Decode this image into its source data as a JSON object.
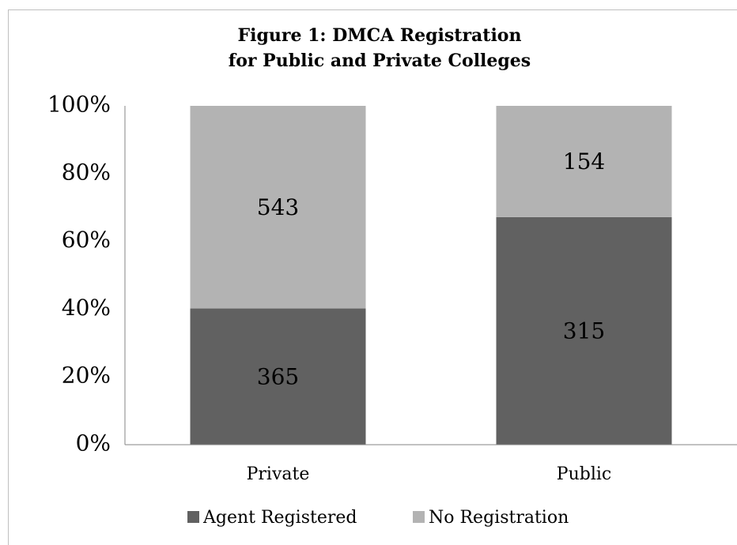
{
  "chart_data": {
    "type": "bar",
    "stacked": "percent",
    "title": [
      "Figure 1:  DMCA Registration",
      "for Public and Private Colleges"
    ],
    "categories": [
      "Private",
      "Public"
    ],
    "series": [
      {
        "name": "Agent Registered",
        "color": "#616161",
        "values": [
          365,
          315
        ]
      },
      {
        "name": "No Registration",
        "color": "#b3b3b3",
        "values": [
          543,
          154
        ]
      }
    ],
    "ylim": [
      0,
      100
    ],
    "yticks": [
      {
        "value": 0,
        "label": "0%"
      },
      {
        "value": 20,
        "label": "20%"
      },
      {
        "value": 40,
        "label": "40%"
      },
      {
        "value": 60,
        "label": "60%"
      },
      {
        "value": 80,
        "label": "80%"
      },
      {
        "value": 100,
        "label": "100%"
      }
    ],
    "grid": false,
    "legend": "bottom"
  }
}
